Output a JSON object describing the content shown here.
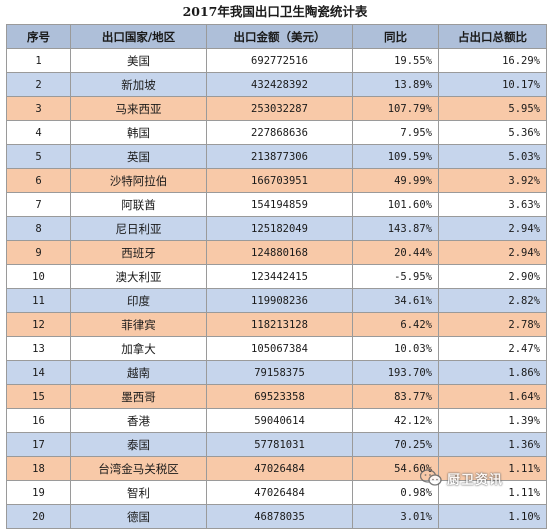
{
  "title": "2017年我国出口卫生陶瓷统计表",
  "columns": [
    "序号",
    "出口国家/地区",
    "出口金额（美元）",
    "同比",
    "占出口总额比"
  ],
  "rows": [
    {
      "idx": "1",
      "name": "美国",
      "amount": "692772516",
      "yoy": "19.55%",
      "share": "16.29%",
      "color": "white"
    },
    {
      "idx": "2",
      "name": "新加坡",
      "amount": "432428392",
      "yoy": "13.89%",
      "share": "10.17%",
      "color": "blue"
    },
    {
      "idx": "3",
      "name": "马来西亚",
      "amount": "253032287",
      "yoy": "107.79%",
      "share": "5.95%",
      "color": "orange"
    },
    {
      "idx": "4",
      "name": "韩国",
      "amount": "227868636",
      "yoy": "7.95%",
      "share": "5.36%",
      "color": "white"
    },
    {
      "idx": "5",
      "name": "英国",
      "amount": "213877306",
      "yoy": "109.59%",
      "share": "5.03%",
      "color": "blue"
    },
    {
      "idx": "6",
      "name": "沙特阿拉伯",
      "amount": "166703951",
      "yoy": "49.99%",
      "share": "3.92%",
      "color": "orange"
    },
    {
      "idx": "7",
      "name": "阿联酋",
      "amount": "154194859",
      "yoy": "101.60%",
      "share": "3.63%",
      "color": "white"
    },
    {
      "idx": "8",
      "name": "尼日利亚",
      "amount": "125182049",
      "yoy": "143.87%",
      "share": "2.94%",
      "color": "blue"
    },
    {
      "idx": "9",
      "name": "西班牙",
      "amount": "124880168",
      "yoy": "20.44%",
      "share": "2.94%",
      "color": "orange"
    },
    {
      "idx": "10",
      "name": "澳大利亚",
      "amount": "123442415",
      "yoy": "-5.95%",
      "share": "2.90%",
      "color": "white"
    },
    {
      "idx": "11",
      "name": "印度",
      "amount": "119908236",
      "yoy": "34.61%",
      "share": "2.82%",
      "color": "blue"
    },
    {
      "idx": "12",
      "name": "菲律宾",
      "amount": "118213128",
      "yoy": "6.42%",
      "share": "2.78%",
      "color": "orange"
    },
    {
      "idx": "13",
      "name": "加拿大",
      "amount": "105067384",
      "yoy": "10.03%",
      "share": "2.47%",
      "color": "white"
    },
    {
      "idx": "14",
      "name": "越南",
      "amount": "79158375",
      "yoy": "193.70%",
      "share": "1.86%",
      "color": "blue"
    },
    {
      "idx": "15",
      "name": "墨西哥",
      "amount": "69523358",
      "yoy": "83.77%",
      "share": "1.64%",
      "color": "orange"
    },
    {
      "idx": "16",
      "name": "香港",
      "amount": "59040614",
      "yoy": "42.12%",
      "share": "1.39%",
      "color": "white"
    },
    {
      "idx": "17",
      "name": "泰国",
      "amount": "57781031",
      "yoy": "70.25%",
      "share": "1.36%",
      "color": "blue"
    },
    {
      "idx": "18",
      "name": "台湾金马关税区",
      "amount": "47026484",
      "yoy": "54.60%",
      "share": "1.11%",
      "color": "orange"
    },
    {
      "idx": "19",
      "name": "智利",
      "amount": "47026484",
      "yoy": "0.98%",
      "share": "1.11%",
      "color": "white"
    },
    {
      "idx": "20",
      "name": "德国",
      "amount": "46878035",
      "yoy": "3.01%",
      "share": "1.10%",
      "color": "blue"
    }
  ],
  "watermark": {
    "text": "厨卫资讯",
    "icon": "wechat-icon"
  }
}
